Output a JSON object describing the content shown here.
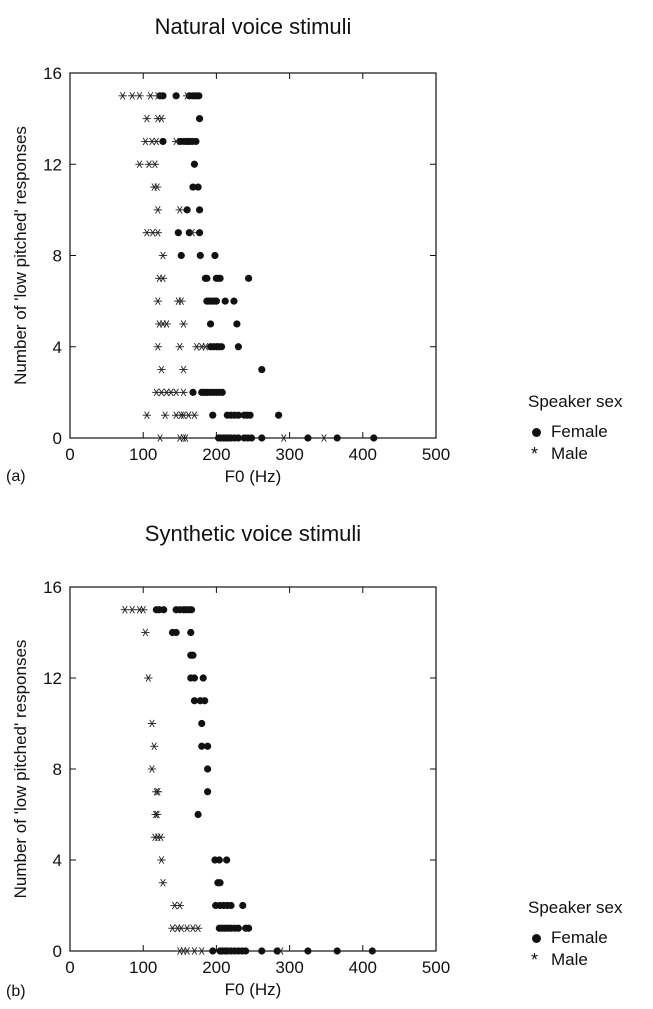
{
  "legend": {
    "title": "Speaker sex",
    "female_label": "Female",
    "male_label": "Male"
  },
  "chart_data": [
    {
      "type": "scatter",
      "panel_label": "(a)",
      "title": "Natural voice stimuli",
      "xlabel": "F0 (Hz)",
      "ylabel": "Number of 'low pitched' responses",
      "xlim": [
        0,
        500
      ],
      "ylim": [
        0,
        16
      ],
      "xticks": [
        0,
        100,
        200,
        300,
        400,
        500
      ],
      "yticks": [
        0,
        4,
        8,
        12,
        16
      ],
      "legend_position": "right",
      "series": [
        {
          "name": "Female",
          "marker": "filled-circle",
          "points": [
            [
              123,
              15
            ],
            [
              127,
              15
            ],
            [
              145,
              15
            ],
            [
              163,
              15
            ],
            [
              168,
              15
            ],
            [
              172,
              15
            ],
            [
              176,
              15
            ],
            [
              177,
              14
            ],
            [
              127,
              13
            ],
            [
              151,
              13
            ],
            [
              156,
              13
            ],
            [
              160,
              13
            ],
            [
              163,
              13
            ],
            [
              167,
              13
            ],
            [
              172,
              13
            ],
            [
              170,
              12
            ],
            [
              168,
              11
            ],
            [
              175,
              11
            ],
            [
              160,
              10
            ],
            [
              177,
              10
            ],
            [
              148,
              9
            ],
            [
              163,
              9
            ],
            [
              177,
              9
            ],
            [
              152,
              8
            ],
            [
              178,
              8
            ],
            [
              198,
              8
            ],
            [
              185,
              7
            ],
            [
              187,
              7
            ],
            [
              200,
              7
            ],
            [
              203,
              7
            ],
            [
              205,
              7
            ],
            [
              244,
              7
            ],
            [
              187,
              6
            ],
            [
              190,
              6
            ],
            [
              193,
              6
            ],
            [
              197,
              6
            ],
            [
              200,
              6
            ],
            [
              212,
              6
            ],
            [
              224,
              6
            ],
            [
              192,
              5
            ],
            [
              228,
              5
            ],
            [
              192,
              4
            ],
            [
              196,
              4
            ],
            [
              200,
              4
            ],
            [
              203,
              4
            ],
            [
              207,
              4
            ],
            [
              230,
              4
            ],
            [
              262,
              3
            ],
            [
              168,
              2
            ],
            [
              180,
              2
            ],
            [
              182,
              2
            ],
            [
              185,
              2
            ],
            [
              188,
              2
            ],
            [
              192,
              2
            ],
            [
              196,
              2
            ],
            [
              200,
              2
            ],
            [
              204,
              2
            ],
            [
              208,
              2
            ],
            [
              195,
              1
            ],
            [
              215,
              1
            ],
            [
              220,
              1
            ],
            [
              225,
              1
            ],
            [
              230,
              1
            ],
            [
              238,
              1
            ],
            [
              242,
              1
            ],
            [
              246,
              1
            ],
            [
              285,
              1
            ],
            [
              203,
              0
            ],
            [
              206,
              0
            ],
            [
              210,
              0
            ],
            [
              213,
              0
            ],
            [
              216,
              0
            ],
            [
              220,
              0
            ],
            [
              225,
              0
            ],
            [
              230,
              0
            ],
            [
              238,
              0
            ],
            [
              243,
              0
            ],
            [
              248,
              0
            ],
            [
              262,
              0
            ],
            [
              325,
              0
            ],
            [
              365,
              0
            ],
            [
              415,
              0
            ]
          ]
        },
        {
          "name": "Male",
          "marker": "asterisk",
          "points": [
            [
              72,
              15
            ],
            [
              85,
              15
            ],
            [
              95,
              15
            ],
            [
              110,
              15
            ],
            [
              120,
              15
            ],
            [
              160,
              15
            ],
            [
              105,
              14
            ],
            [
              120,
              14
            ],
            [
              125,
              14
            ],
            [
              103,
              13
            ],
            [
              112,
              13
            ],
            [
              118,
              13
            ],
            [
              145,
              13
            ],
            [
              95,
              12
            ],
            [
              108,
              12
            ],
            [
              116,
              12
            ],
            [
              115,
              11
            ],
            [
              119,
              11
            ],
            [
              120,
              10
            ],
            [
              150,
              10
            ],
            [
              105,
              9
            ],
            [
              113,
              9
            ],
            [
              120,
              9
            ],
            [
              167,
              9
            ],
            [
              127,
              8
            ],
            [
              122,
              7
            ],
            [
              127,
              7
            ],
            [
              120,
              6
            ],
            [
              148,
              6
            ],
            [
              152,
              6
            ],
            [
              122,
              5
            ],
            [
              127,
              5
            ],
            [
              132,
              5
            ],
            [
              155,
              5
            ],
            [
              120,
              4
            ],
            [
              150,
              4
            ],
            [
              173,
              4
            ],
            [
              180,
              4
            ],
            [
              185,
              4
            ],
            [
              125,
              3
            ],
            [
              155,
              3
            ],
            [
              118,
              2
            ],
            [
              125,
              2
            ],
            [
              132,
              2
            ],
            [
              138,
              2
            ],
            [
              145,
              2
            ],
            [
              155,
              2
            ],
            [
              105,
              1
            ],
            [
              130,
              1
            ],
            [
              145,
              1
            ],
            [
              152,
              1
            ],
            [
              155,
              1
            ],
            [
              162,
              1
            ],
            [
              170,
              1
            ],
            [
              123,
              0
            ],
            [
              150,
              0
            ],
            [
              155,
              0
            ],
            [
              158,
              0
            ],
            [
              292,
              0
            ],
            [
              347,
              0
            ]
          ]
        }
      ]
    },
    {
      "type": "scatter",
      "panel_label": "(b)",
      "title": "Synthetic voice stimuli",
      "xlabel": "F0 (Hz)",
      "ylabel": "Number of 'low pitched' responses",
      "xlim": [
        0,
        500
      ],
      "ylim": [
        0,
        16
      ],
      "xticks": [
        0,
        100,
        200,
        300,
        400,
        500
      ],
      "yticks": [
        0,
        4,
        8,
        12,
        16
      ],
      "legend_position": "right",
      "series": [
        {
          "name": "Female",
          "marker": "filled-circle",
          "points": [
            [
              118,
              15
            ],
            [
              122,
              15
            ],
            [
              128,
              15
            ],
            [
              145,
              15
            ],
            [
              150,
              15
            ],
            [
              155,
              15
            ],
            [
              158,
              15
            ],
            [
              162,
              15
            ],
            [
              166,
              15
            ],
            [
              140,
              14
            ],
            [
              145,
              14
            ],
            [
              165,
              14
            ],
            [
              165,
              13
            ],
            [
              168,
              13
            ],
            [
              165,
              12
            ],
            [
              170,
              12
            ],
            [
              182,
              12
            ],
            [
              170,
              11
            ],
            [
              178,
              11
            ],
            [
              184,
              11
            ],
            [
              180,
              10
            ],
            [
              180,
              9
            ],
            [
              188,
              9
            ],
            [
              188,
              8
            ],
            [
              188,
              7
            ],
            [
              175,
              6
            ],
            [
              198,
              4
            ],
            [
              204,
              4
            ],
            [
              214,
              4
            ],
            [
              202,
              3
            ],
            [
              205,
              3
            ],
            [
              199,
              2
            ],
            [
              205,
              2
            ],
            [
              210,
              2
            ],
            [
              215,
              2
            ],
            [
              220,
              2
            ],
            [
              236,
              2
            ],
            [
              204,
              1
            ],
            [
              208,
              1
            ],
            [
              212,
              1
            ],
            [
              216,
              1
            ],
            [
              220,
              1
            ],
            [
              225,
              1
            ],
            [
              230,
              1
            ],
            [
              240,
              1
            ],
            [
              244,
              1
            ],
            [
              195,
              0
            ],
            [
              205,
              0
            ],
            [
              208,
              0
            ],
            [
              212,
              0
            ],
            [
              215,
              0
            ],
            [
              220,
              0
            ],
            [
              225,
              0
            ],
            [
              230,
              0
            ],
            [
              235,
              0
            ],
            [
              240,
              0
            ],
            [
              262,
              0
            ],
            [
              283,
              0
            ],
            [
              325,
              0
            ],
            [
              365,
              0
            ],
            [
              413,
              0
            ]
          ]
        },
        {
          "name": "Male",
          "marker": "asterisk",
          "points": [
            [
              75,
              15
            ],
            [
              85,
              15
            ],
            [
              95,
              15
            ],
            [
              100,
              15
            ],
            [
              103,
              14
            ],
            [
              107,
              12
            ],
            [
              112,
              10
            ],
            [
              115,
              9
            ],
            [
              112,
              8
            ],
            [
              118,
              7
            ],
            [
              120,
              7
            ],
            [
              117,
              6
            ],
            [
              119,
              6
            ],
            [
              116,
              5
            ],
            [
              120,
              5
            ],
            [
              124,
              5
            ],
            [
              125,
              4
            ],
            [
              127,
              3
            ],
            [
              143,
              2
            ],
            [
              150,
              2
            ],
            [
              140,
              1
            ],
            [
              147,
              1
            ],
            [
              152,
              1
            ],
            [
              160,
              1
            ],
            [
              168,
              1
            ],
            [
              175,
              1
            ],
            [
              150,
              0
            ],
            [
              155,
              0
            ],
            [
              160,
              0
            ],
            [
              170,
              0
            ],
            [
              180,
              0
            ],
            [
              288,
              0
            ]
          ]
        }
      ]
    }
  ]
}
